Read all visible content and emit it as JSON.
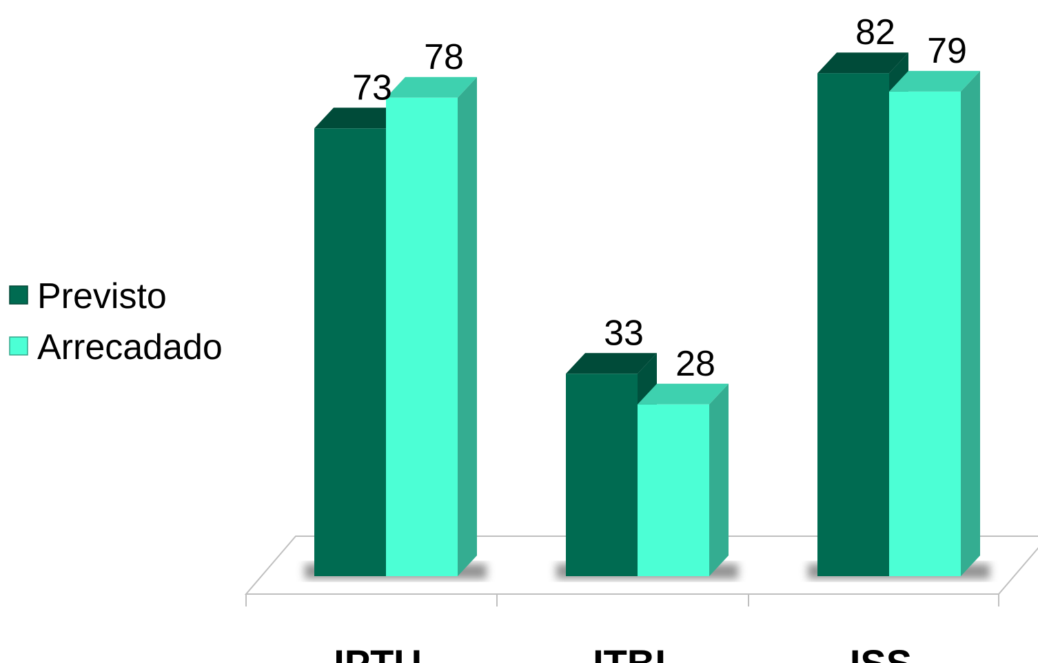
{
  "chart_data": {
    "type": "bar",
    "categories": [
      "IPTU",
      "ITBI",
      "ISS"
    ],
    "series": [
      {
        "name": "Previsto",
        "values": [
          73,
          33,
          82
        ],
        "color": "#006B51"
      },
      {
        "name": "Arrecadado",
        "values": [
          78,
          28,
          79
        ],
        "color": "#4CFFD5"
      }
    ],
    "ylim": [
      0,
      90
    ],
    "grid": false,
    "legend_position": "left",
    "style": "3d-clustered-column"
  }
}
